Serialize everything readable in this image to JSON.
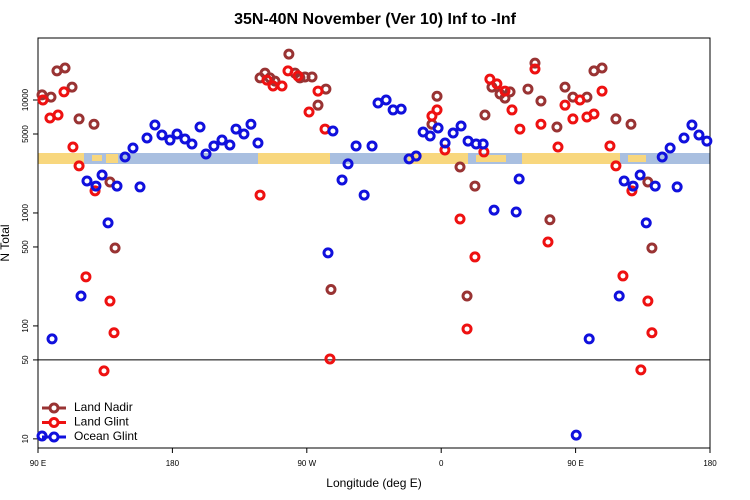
{
  "chart_data": {
    "type": "scatter",
    "title": "35N-40N November (Ver 10)   Inf to -Inf",
    "x_label": "Longitude (deg E)",
    "y_label": "N Total",
    "xlim": [
      90,
      540
    ],
    "ylim": [
      8.3,
      35400
    ],
    "log_y": true,
    "hline": 50,
    "legend": "lower left",
    "xticks": [
      {
        "value": 90,
        "label": "90 E"
      },
      180,
      {
        "value": 270,
        "label": "90 W"
      },
      {
        "value": 360,
        "label": "0"
      },
      {
        "value": 450,
        "label": "90 E"
      },
      {
        "value": 540,
        "label": "180"
      }
    ],
    "yticks": [
      10,
      50,
      100,
      500,
      1000,
      5000,
      10000
    ],
    "series": [
      {
        "name": "Land Nadir",
        "color": "#993333",
        "x": [
          92.7,
          98.7,
          102.7,
          108.1,
          112.8,
          117.5,
          127.5,
          138.2,
          141.6,
          238.7,
          242,
          245.3,
          248.7,
          258,
          262.1,
          265.4,
          268.8,
          273.5,
          277.5,
          282.8,
          286.2,
          353.8,
          357.2,
          372.6,
          377.3,
          382.6,
          389.3,
          394,
          399.4,
          402.7,
          406.1,
          418.1,
          422.8,
          426.8,
          432.8,
          437.5,
          442.9,
          448.2,
          457.6,
          462.3,
          467.7,
          477,
          487.1,
          498.4,
          501.1
        ],
        "values": [
          11100,
          10600,
          18100,
          19200,
          13000,
          6800,
          6100,
          1880,
          490,
          15700,
          17300,
          15700,
          14700,
          25500,
          17300,
          15700,
          16000,
          16000,
          9000,
          12500,
          210,
          6100,
          10800,
          2550,
          184,
          1730,
          7360,
          13000,
          11300,
          10400,
          11800,
          12500,
          21200,
          9800,
          870,
          5770,
          13000,
          10600,
          10600,
          18100,
          19200,
          6800,
          6100,
          1880,
          490
        ]
      },
      {
        "name": "Land Glint",
        "color": "#ee1111",
        "x": [
          93.3,
          98,
          103.4,
          107.4,
          113.4,
          117.5,
          122.1,
          128.2,
          134.2,
          138.2,
          140.9,
          238.7,
          243.3,
          247.4,
          253.4,
          257.4,
          264.1,
          271.5,
          277.5,
          282.2,
          285.5,
          353.8,
          357.2,
          362.5,
          372.6,
          377.3,
          382.6,
          388.6,
          392.6,
          397.3,
          402.7,
          407.4,
          412.7,
          422.8,
          426.8,
          431.5,
          438.2,
          442.9,
          448.2,
          452.9,
          457.6,
          462.3,
          467.7,
          473,
          477,
          481.7,
          487.7,
          493.7,
          498.4,
          501.1
        ],
        "values": [
          10000,
          6930,
          7360,
          11800,
          3840,
          2610,
          272,
          1570,
          40,
          166,
          87,
          1440,
          15000,
          13300,
          13300,
          18100,
          16300,
          7830,
          12000,
          5530,
          51,
          7210,
          8170,
          3610,
          885,
          94,
          408,
          3470,
          15300,
          13900,
          12000,
          8170,
          5530,
          18800,
          6100,
          553,
          3840,
          9000,
          6800,
          10000,
          7080,
          7520,
          12000,
          3920,
          2610,
          277,
          1570,
          40.8,
          166,
          87
        ]
      },
      {
        "name": "Ocean Glint",
        "color": "#1010dd",
        "x": [
          92.7,
          99.4,
          118.8,
          122.8,
          128.8,
          132.9,
          136.9,
          142.9,
          148.3,
          153.6,
          158.3,
          163,
          168.3,
          173,
          178.4,
          183.1,
          188.4,
          193.1,
          198.5,
          202.5,
          207.8,
          213.2,
          218.5,
          222.6,
          227.9,
          232.6,
          237.3,
          284.2,
          287.5,
          293.6,
          297.6,
          303,
          308.4,
          313.7,
          317.7,
          323.1,
          327.8,
          333.2,
          338.5,
          343.2,
          347.9,
          352.6,
          357.9,
          362.6,
          368,
          373.3,
          378,
          383.4,
          388.1,
          395.4,
          410.2,
          412.2,
          450.4,
          459.1,
          479.2,
          482.5,
          488.5,
          493.2,
          497.3,
          503.3,
          508,
          513.3,
          518,
          522.6,
          527.9,
          532.6,
          537.9
        ],
        "values": [
          10.6,
          76.7,
          184,
          1920,
          1730,
          2170,
          817,
          1730,
          3130,
          3760,
          1700,
          4610,
          6010,
          4900,
          4420,
          5000,
          4520,
          4080,
          5770,
          3330,
          3920,
          4420,
          4000,
          5530,
          5000,
          6100,
          4160,
          443,
          5320,
          1960,
          2720,
          3920,
          1440,
          3920,
          9400,
          10000,
          8170,
          8310,
          3010,
          3190,
          5210,
          4800,
          5650,
          4160,
          5100,
          5890,
          4330,
          4080,
          4080,
          1060,
          1020,
          2000,
          10.8,
          76.7,
          184,
          1920,
          1730,
          2170,
          817,
          1730,
          3130,
          3760,
          1700,
          4610,
          6010,
          4900,
          4330
        ]
      }
    ]
  }
}
